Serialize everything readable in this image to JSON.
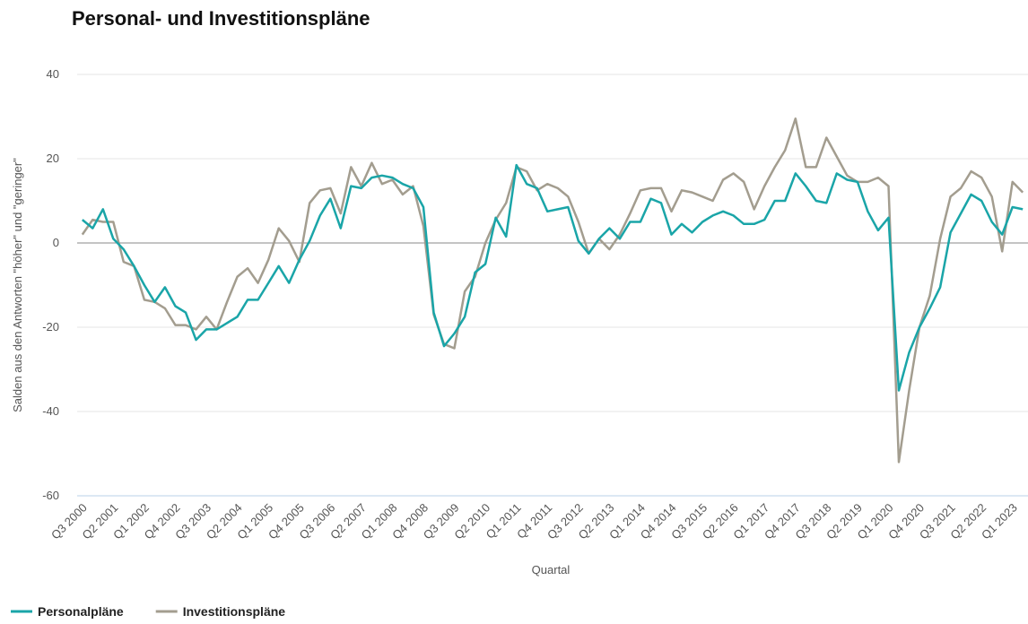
{
  "chart_data": {
    "type": "line",
    "title": "Personal- und Investitionspläne",
    "x_label": "Quartal",
    "y_label": "Salden aus den Antworten \"höher\" und \"geringer\"",
    "categories": [
      "Q3 2000",
      null,
      null,
      "Q2 2001",
      null,
      null,
      "Q1 2002",
      null,
      null,
      "Q4 2002",
      null,
      null,
      "Q3 2003",
      null,
      null,
      "Q2 2004",
      null,
      null,
      "Q1 2005",
      null,
      null,
      "Q4 2005",
      null,
      null,
      "Q3 2006",
      null,
      null,
      "Q2 2007",
      null,
      null,
      "Q1 2008",
      null,
      null,
      "Q4 2008",
      null,
      null,
      "Q3 2009",
      null,
      null,
      "Q2 2010",
      null,
      null,
      "Q1 2011",
      null,
      null,
      "Q4 2011",
      null,
      null,
      "Q3 2012",
      null,
      null,
      "Q2 2013",
      null,
      null,
      "Q1 2014",
      null,
      null,
      "Q4 2014",
      null,
      null,
      "Q3 2015",
      null,
      null,
      "Q2 2016",
      null,
      null,
      "Q1 2017",
      null,
      null,
      "Q4 2017",
      null,
      null,
      "Q3 2018",
      null,
      null,
      "Q2 2019",
      null,
      null,
      "Q1 2020",
      null,
      null,
      "Q4 2020",
      null,
      null,
      "Q3 2021",
      null,
      null,
      "Q2 2022",
      null,
      null,
      "Q1 2023",
      null
    ],
    "series": [
      {
        "name": "Personalpläne",
        "color": "#1aa5a8",
        "values": [
          5.5,
          3.5,
          8,
          1,
          -1.5,
          -5.5,
          -10,
          -14,
          -10.5,
          -15,
          -16.5,
          -23,
          -20.5,
          -20.5,
          -19,
          -17.5,
          -13.5,
          -13.5,
          -9.5,
          -5.5,
          -9.5,
          -4,
          0.5,
          6.5,
          10.5,
          3.5,
          13.5,
          13,
          15.5,
          16,
          15.5,
          14,
          13,
          8.5,
          -16.5,
          -24.5,
          -21.5,
          -17.5,
          -7,
          -5,
          6,
          1.5,
          18.5,
          14,
          13,
          7.5,
          8,
          8.5,
          0.5,
          -2.5,
          1,
          3.5,
          1,
          5,
          5,
          10.5,
          9.5,
          2,
          4.5,
          2.5,
          5,
          6.5,
          7.5,
          6.5,
          4.5,
          4.5,
          5.5,
          10,
          10,
          16.5,
          13.5,
          10,
          9.5,
          16.5,
          15,
          14.5,
          7.5,
          3,
          6,
          -35,
          -26,
          -20,
          -15.5,
          -10.5,
          2.5,
          7,
          11.5,
          10,
          5,
          2,
          8.5,
          8
        ]
      },
      {
        "name": "Investitionspläne",
        "color": "#a39d8f",
        "values": [
          2,
          5.5,
          5,
          5,
          -4.5,
          -5.5,
          -13.5,
          -14,
          -15.5,
          -19.5,
          -19.5,
          -20.5,
          -17.5,
          -20.5,
          -14,
          -8,
          -6,
          -9.5,
          -4,
          3.5,
          0.5,
          -4.5,
          9.5,
          12.5,
          13,
          7,
          18,
          13.5,
          19,
          14,
          15,
          11.5,
          13.5,
          4,
          -17,
          -24,
          -25,
          -11.5,
          -8,
          0,
          5.5,
          9.5,
          18,
          17,
          12.5,
          14,
          13,
          11,
          5,
          -2.5,
          1,
          -1.5,
          2,
          7,
          12.5,
          13,
          13,
          7.5,
          12.5,
          12,
          11,
          10,
          15,
          16.5,
          14.5,
          8,
          13.5,
          18,
          22,
          29.5,
          18,
          18,
          25,
          20.5,
          16,
          14.5,
          14.5,
          15.5,
          13.5,
          -52,
          -35,
          -20,
          -12.5,
          1,
          11,
          13,
          17,
          15.5,
          11,
          -2,
          14.5,
          12
        ]
      }
    ],
    "ylim": [
      -60,
      40
    ],
    "yticks": [
      -60,
      -40,
      -20,
      0,
      20,
      40
    ],
    "grid": true
  }
}
